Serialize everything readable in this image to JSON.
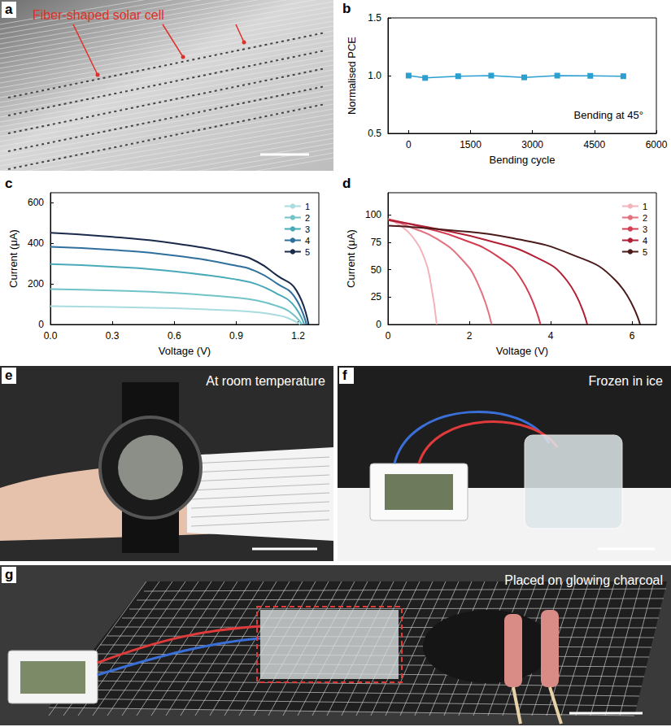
{
  "chart_data": [
    {
      "type": "line",
      "panel": "b",
      "xlabel": "Bending cycle",
      "ylabel": "Normalised PCE",
      "xlim": [
        -500,
        6000
      ],
      "xticks": [
        0,
        1500,
        3000,
        4500,
        6000
      ],
      "ylim": [
        0.5,
        1.5
      ],
      "yticks": [
        0.5,
        {
          "value": 1,
          "label": "1.0"
        },
        1.5
      ],
      "x": [
        0,
        400,
        1200,
        2000,
        2800,
        3600,
        4400,
        5200
      ],
      "values": [
        1.0,
        0.98,
        0.995,
        1.0,
        0.985,
        1.0,
        0.998,
        0.995
      ],
      "color": "#2a9fd0",
      "marker": "square",
      "line_style": "solid",
      "annotations": [
        "Bending at 45°"
      ],
      "grid": false
    },
    {
      "type": "line",
      "panel": "c",
      "xlabel": "Voltage (V)",
      "ylabel": "Current (μA)",
      "xlim": [
        0,
        1.3
      ],
      "xticks": [
        {
          "value": 0,
          "label": "0.0"
        },
        0.3,
        0.6,
        0.9,
        1.2
      ],
      "ylim": [
        0,
        650
      ],
      "yticks": [
        0,
        200,
        400,
        600
      ],
      "legend": "upper right",
      "grid": false,
      "series": [
        {
          "name": "1",
          "color": "#a9dcdf",
          "marker": "none",
          "line_style": "solid",
          "x": [
            0,
            0.3,
            0.6,
            0.9,
            1.0,
            1.1,
            1.15,
            1.21
          ],
          "values": [
            90,
            86,
            80,
            68,
            60,
            45,
            32,
            0
          ]
        },
        {
          "name": "2",
          "color": "#72c3c8",
          "marker": "none",
          "line_style": "solid",
          "x": [
            0,
            0.3,
            0.6,
            0.9,
            1.0,
            1.1,
            1.16,
            1.22
          ],
          "values": [
            175,
            168,
            155,
            132,
            118,
            90,
            62,
            0
          ]
        },
        {
          "name": "3",
          "color": "#48a9b8",
          "marker": "none",
          "line_style": "solid",
          "x": [
            0,
            0.3,
            0.6,
            0.9,
            1.0,
            1.1,
            1.17,
            1.23
          ],
          "values": [
            298,
            285,
            262,
            222,
            198,
            150,
            105,
            0
          ]
        },
        {
          "name": "4",
          "color": "#2f6f9e",
          "marker": "none",
          "line_style": "solid",
          "x": [
            0,
            0.3,
            0.6,
            0.9,
            1.0,
            1.1,
            1.18,
            1.24
          ],
          "values": [
            383,
            368,
            340,
            290,
            260,
            200,
            140,
            0
          ]
        },
        {
          "name": "5",
          "color": "#1a2a4a",
          "marker": "none",
          "line_style": "solid",
          "x": [
            0,
            0.3,
            0.6,
            0.9,
            1.0,
            1.1,
            1.19,
            1.25
          ],
          "values": [
            452,
            432,
            400,
            345,
            310,
            240,
            170,
            0
          ]
        }
      ]
    },
    {
      "type": "line",
      "panel": "d",
      "xlabel": "Voltage (V)",
      "ylabel": "Current (μA)",
      "xlim": [
        0,
        6.6
      ],
      "xticks": [
        0,
        2,
        4,
        6
      ],
      "ylim": [
        0,
        120
      ],
      "yticks": [
        0,
        25,
        50,
        75,
        100
      ],
      "legend": "upper right",
      "grid": false,
      "series": [
        {
          "name": "1",
          "color": "#f2b3bd",
          "marker": "none",
          "line_style": "solid",
          "x": [
            0,
            0.3,
            0.6,
            0.9,
            1.05,
            1.2
          ],
          "values": [
            96,
            90,
            80,
            60,
            38,
            0
          ]
        },
        {
          "name": "2",
          "color": "#e2727f",
          "marker": "none",
          "line_style": "solid",
          "x": [
            0,
            0.6,
            1.2,
            1.8,
            2.2,
            2.55
          ],
          "values": [
            96,
            88,
            78,
            60,
            38,
            0
          ]
        },
        {
          "name": "3",
          "color": "#d43e52",
          "marker": "none",
          "line_style": "solid",
          "x": [
            0,
            0.9,
            1.8,
            2.7,
            3.3,
            3.75
          ],
          "values": [
            96,
            88,
            78,
            62,
            40,
            0
          ]
        },
        {
          "name": "4",
          "color": "#b01f33",
          "marker": "none",
          "line_style": "solid",
          "x": [
            0,
            1.2,
            2.4,
            3.6,
            4.4,
            4.9
          ],
          "values": [
            95,
            87,
            77,
            62,
            40,
            0
          ]
        },
        {
          "name": "5",
          "color": "#4a1a1a",
          "marker": "none",
          "line_style": "solid",
          "x": [
            0,
            1.5,
            3,
            4.5,
            5.6,
            6.2
          ],
          "values": [
            90,
            86,
            79,
            64,
            40,
            0
          ]
        }
      ]
    }
  ],
  "photo_panels": [
    {
      "panel": "a",
      "text": "Fiber-shaped solar cell"
    },
    {
      "panel": "e",
      "text": "At room temperature"
    },
    {
      "panel": "f",
      "text": "Frozen in ice"
    },
    {
      "panel": "g",
      "text": "Placed on glowing charcoal"
    }
  ]
}
